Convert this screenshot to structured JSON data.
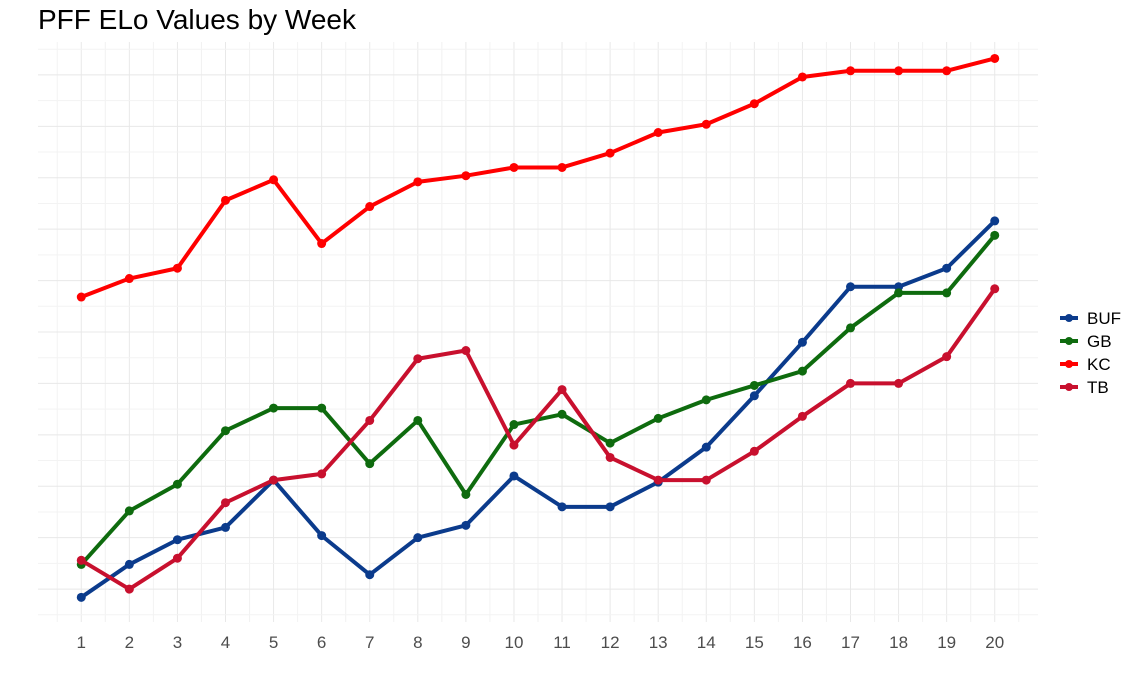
{
  "chart_data": {
    "type": "line",
    "title": "PFF ELo Values by Week",
    "xlabel": "",
    "ylabel": "",
    "x": [
      1,
      2,
      3,
      4,
      5,
      6,
      7,
      8,
      9,
      10,
      11,
      12,
      13,
      14,
      15,
      16,
      17,
      18,
      19,
      20
    ],
    "ylim": [
      1434,
      1716
    ],
    "y_ticks_labeled": false,
    "grid": true,
    "legend_position": "right",
    "series": [
      {
        "name": "BUF",
        "color": "#0B3B8C",
        "values": [
          1446,
          1462,
          1474,
          1480,
          1503,
          1476,
          1457,
          1475,
          1481,
          1505,
          1490,
          1490,
          1502,
          1519,
          1544,
          1570,
          1597,
          1597,
          1606,
          1629
        ]
      },
      {
        "name": "GB",
        "color": "#0E6B0E",
        "values": [
          1462,
          1488,
          1501,
          1527,
          1538,
          1538,
          1511,
          1532,
          1496,
          1530,
          1535,
          1521,
          1533,
          1542,
          1549,
          1556,
          1577,
          1594,
          1594,
          1622
        ]
      },
      {
        "name": "KC",
        "color": "#FF0000",
        "values": [
          1592,
          1601,
          1606,
          1639,
          1649,
          1618,
          1636,
          1648,
          1651,
          1655,
          1655,
          1662,
          1672,
          1676,
          1686,
          1699,
          1702,
          1702,
          1702,
          1708
        ]
      },
      {
        "name": "TB",
        "color": "#C8102E",
        "values": [
          1464,
          1450,
          1465,
          1492,
          1503,
          1506,
          1532,
          1562,
          1566,
          1520,
          1547,
          1514,
          1503,
          1503,
          1517,
          1534,
          1550,
          1550,
          1563,
          1596
        ]
      }
    ]
  }
}
